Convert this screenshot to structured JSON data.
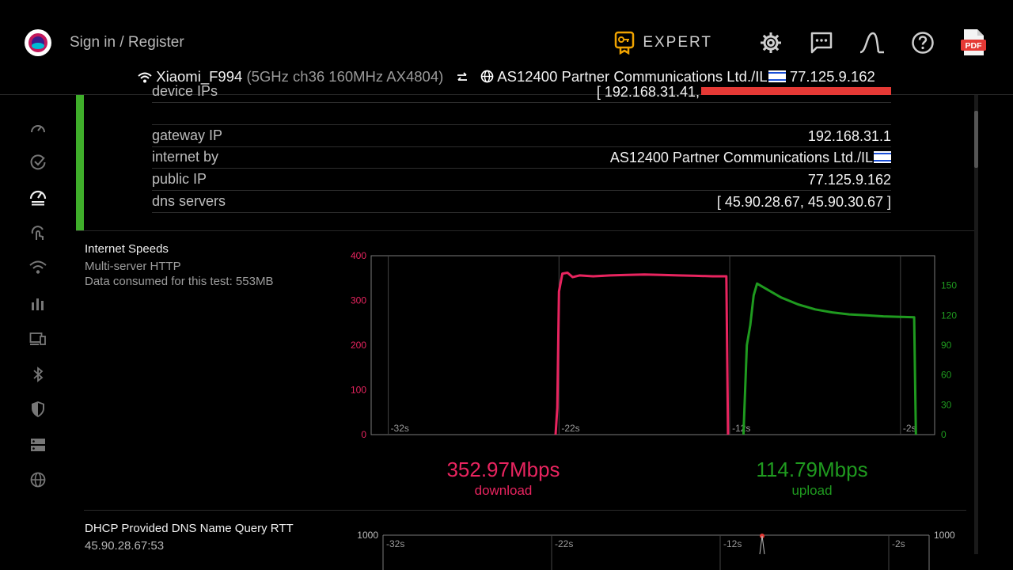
{
  "header": {
    "signin_label": "Sign in / Register",
    "expert_label": "EXPERT",
    "icons": [
      "app-logo",
      "expert-badge-icon",
      "settings-icon",
      "feedback-icon",
      "signal-curve-icon",
      "help-icon",
      "pdf-export-icon"
    ],
    "pdf_badge": "PDF"
  },
  "network": {
    "ssid": "Xiaomi_F994",
    "details": "(5GHz ch36 160MHz AX4804)",
    "isp": "AS12400 Partner Communications Ltd./IL",
    "public_ip": "77.125.9.162"
  },
  "sidebar": {
    "items": [
      "speedometer-icon",
      "check-circle-icon",
      "speedtest-icon",
      "touch-scan-icon",
      "wifi-icon",
      "bar-chart-icon",
      "devices-icon",
      "bluetooth-icon",
      "shield-icon",
      "server-icon",
      "globe-icon"
    ],
    "active_index": 2
  },
  "info": {
    "partial_label": "device IPs",
    "partial_value": "[ 192.168.31.41,",
    "rows": [
      {
        "key": "gateway IP",
        "value": "192.168.31.1"
      },
      {
        "key": "internet by",
        "value": "AS12400 Partner Communications Ltd./IL"
      },
      {
        "key": "public IP",
        "value": "77.125.9.162"
      },
      {
        "key": "dns servers",
        "value": "[ 45.90.28.67, 45.90.30.67 ]"
      }
    ]
  },
  "speeds": {
    "title": "Internet Speeds",
    "method": "Multi-server HTTP",
    "data_consumed": "Data consumed for this test: 553MB",
    "download_value": "352.97Mbps",
    "download_label": "download",
    "upload_value": "114.79Mbps",
    "upload_label": "upload"
  },
  "dns_rtt": {
    "title": "DHCP Provided DNS Name Query RTT",
    "server": "45.90.28.67:53",
    "ymax_left": "1000",
    "ymax_right": "1000",
    "x_ticks": [
      "-32s",
      "-22s",
      "-12s",
      "-2s"
    ]
  },
  "colors": {
    "download": "#e8245f",
    "upload": "#1f9a1f",
    "accent_green": "#3fae2a",
    "expert_gold": "#f0a300",
    "pdf_red": "#e53935"
  },
  "chart_data": {
    "type": "line",
    "x_ticks": [
      "-32s",
      "-22s",
      "-12s",
      "-2s"
    ],
    "xlim": [
      -33,
      0
    ],
    "y_left": {
      "ticks": [
        "0",
        "100",
        "200",
        "300",
        "400"
      ],
      "ylim": [
        0,
        400
      ]
    },
    "y_right": {
      "ticks": [
        "0",
        "30",
        "60",
        "90",
        "120",
        "150"
      ],
      "ylim": [
        0,
        180
      ]
    },
    "series": [
      {
        "name": "download",
        "axis": "left",
        "points": [
          [
            -22.2,
            0
          ],
          [
            -22.1,
            60
          ],
          [
            -22.0,
            320
          ],
          [
            -21.8,
            360
          ],
          [
            -21.5,
            362
          ],
          [
            -21.2,
            352
          ],
          [
            -20.8,
            356
          ],
          [
            -20,
            354
          ],
          [
            -19,
            356
          ],
          [
            -18,
            357
          ],
          [
            -17,
            358
          ],
          [
            -16,
            357
          ],
          [
            -15,
            356
          ],
          [
            -14,
            355
          ],
          [
            -13,
            354
          ],
          [
            -12.2,
            354
          ],
          [
            -12.1,
            0
          ]
        ]
      },
      {
        "name": "upload",
        "axis": "right",
        "points": [
          [
            -11.2,
            0
          ],
          [
            -11.0,
            90
          ],
          [
            -10.8,
            110
          ],
          [
            -10.6,
            140
          ],
          [
            -10.4,
            152
          ],
          [
            -10.0,
            148
          ],
          [
            -9,
            138
          ],
          [
            -8,
            131
          ],
          [
            -7,
            126
          ],
          [
            -6,
            123
          ],
          [
            -5,
            121
          ],
          [
            -4,
            120
          ],
          [
            -3,
            119
          ],
          [
            -2,
            118.5
          ],
          [
            -1.2,
            118
          ],
          [
            -1.1,
            0
          ]
        ]
      }
    ]
  }
}
